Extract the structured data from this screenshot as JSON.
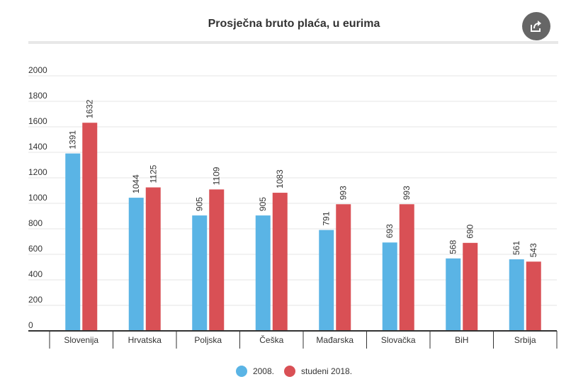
{
  "header": {
    "share_icon": "share-icon"
  },
  "chart_data": {
    "type": "bar",
    "title": "Prosječna bruto plaća, u eurima",
    "xlabel": "",
    "ylabel": "",
    "ylim": [
      0,
      2000
    ],
    "yticks": [
      0,
      200,
      400,
      600,
      800,
      1000,
      1200,
      1400,
      1600,
      1800,
      2000
    ],
    "grid": true,
    "legend_position": "bottom",
    "categories": [
      "Slovenija",
      "Hrvatska",
      "Poljska",
      "Češka",
      "Mađarska",
      "Slovačka",
      "BiH",
      "Srbija"
    ],
    "series": [
      {
        "name": "2008.",
        "color": "#5ab4e5",
        "values": [
          1391,
          1044,
          905,
          905,
          791,
          693,
          568,
          561
        ]
      },
      {
        "name": "studeni 2018.",
        "color": "#d95055",
        "values": [
          1632,
          1125,
          1109,
          1083,
          993,
          993,
          690,
          543
        ]
      }
    ]
  }
}
